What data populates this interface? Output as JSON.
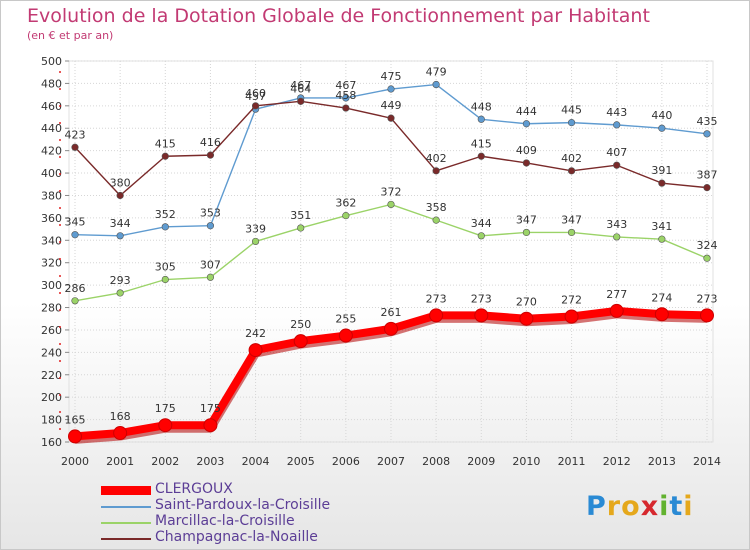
{
  "title": "Evolution de la Dotation Globale de Fonctionnement par Habitant",
  "subtitle": "(en € et par an)",
  "logo": {
    "text": "Proxiti",
    "icon": "proxiti-logo"
  },
  "chart_data": {
    "type": "line",
    "x": [
      "2000",
      "2001",
      "2002",
      "2003",
      "2004",
      "2005",
      "2006",
      "2007",
      "2008",
      "2009",
      "2010",
      "2011",
      "2012",
      "2013",
      "2014"
    ],
    "ylim": [
      160,
      500
    ],
    "ytick_step": 20,
    "grid": true,
    "legend": "bottom-left",
    "series": [
      {
        "name": "CLERGOUX",
        "color": "#ff0000",
        "values": [
          165,
          168,
          175,
          175,
          242,
          250,
          255,
          261,
          273,
          273,
          270,
          272,
          277,
          274,
          273
        ]
      },
      {
        "name": "Saint-Pardoux-la-Croisille",
        "color": "#5f9bd0",
        "values": [
          345,
          344,
          352,
          353,
          457,
          467,
          467,
          475,
          479,
          448,
          444,
          445,
          443,
          440,
          435
        ]
      },
      {
        "name": "Marcillac-la-Croisille",
        "color": "#9bd368",
        "values": [
          286,
          293,
          305,
          307,
          339,
          351,
          362,
          372,
          358,
          344,
          347,
          347,
          343,
          341,
          324
        ]
      },
      {
        "name": "Champagnac-la-Noaille",
        "color": "#7a2a2a",
        "values": [
          423,
          380,
          415,
          416,
          460,
          464,
          458,
          449,
          402,
          415,
          409,
          402,
          407,
          391,
          387
        ]
      }
    ]
  }
}
